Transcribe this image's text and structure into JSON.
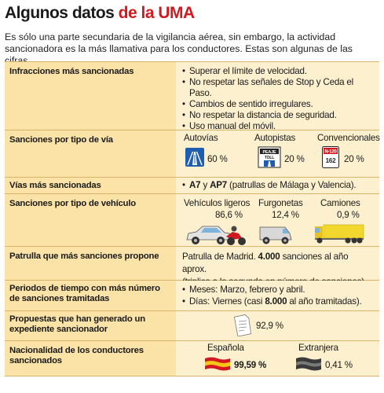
{
  "title": {
    "part1": "Algunos datos ",
    "part2": "de la UMA"
  },
  "intro": "Es sólo una parte secundaria de la vigilancia aérea, sin embargo, la actividad sancionadora es la más llamativa para los conductores. Estas son algunas de las cifras.",
  "rows": {
    "infracciones": {
      "label": "Infracciones más sancionadas",
      "items": [
        "Superar el límite de velocidad.",
        "No respetar las señales de Stop y Ceda el Paso.",
        "Cambios de sentido irregulares.",
        "No respetar la distancia de seguridad.",
        "Uso manual del móvil."
      ]
    },
    "tipo_via": {
      "label": "Sanciones por tipo de vía",
      "cols": [
        {
          "name": "Autovías",
          "pct": "60 %",
          "icon": "autovia-sign-icon"
        },
        {
          "name": "Autopistas",
          "pct": "20 %",
          "icon": "autopista-toll-sign-icon"
        },
        {
          "name": "Convencionales",
          "pct": "20 %",
          "icon": "conventional-road-sign-icon"
        }
      ],
      "sign_text": {
        "peaje": "PEAJE",
        "toll": "TOLL",
        "n": "N-120",
        "num": "162"
      }
    },
    "vias": {
      "label": "Vías más sancionadas",
      "a7": "A7",
      "y": " y ",
      "ap7": "AP7",
      "rest": " (patrullas de Málaga y Valencia)."
    },
    "tipo_vehiculo": {
      "label": "Sanciones por tipo de vehículo",
      "cols": [
        {
          "name": "Vehículos ligeros",
          "pct": "86,6 %",
          "icon": "car-motorcycle-icon"
        },
        {
          "name": "Furgonetas",
          "pct": "12,4 %",
          "icon": "van-icon"
        },
        {
          "name": "Camiones",
          "pct": "0,9 %",
          "icon": "truck-icon"
        }
      ]
    },
    "patrulla": {
      "label": "Patrulla que más sanciones propone",
      "line1a": "Patrulla de Madrid. ",
      "line1b": "4.000",
      "line1c": " sanciones al año aprox.",
      "line2": "(triplica a la segunda en número de sanciones)."
    },
    "periodos": {
      "label": "Periodos de tiempo con más número de sanciones tramitadas",
      "item1": "Meses: Marzo, febrero y abril.",
      "item2a": "Días: Viernes (casi ",
      "item2b": "8.000",
      "item2c": " al año tramitadas)."
    },
    "propuestas": {
      "label": "Propuestas que han generado un expediente sancionador",
      "pct": "92,9 %",
      "icon": "document-icon"
    },
    "nacionalidad": {
      "label": "Nacionalidad de los conductores sancionados",
      "cols": [
        {
          "name": "Española",
          "pct": "99,59 %",
          "icon": "spain-flag-icon"
        },
        {
          "name": "Extranjera",
          "pct": "0,41 %",
          "icon": "foreign-flag-icon"
        }
      ]
    }
  },
  "colors": {
    "accent_red": "#d2191f",
    "label_bg": "#fbe2a7",
    "value_bg": "#fdf0cf",
    "border": "#d9b36a"
  }
}
